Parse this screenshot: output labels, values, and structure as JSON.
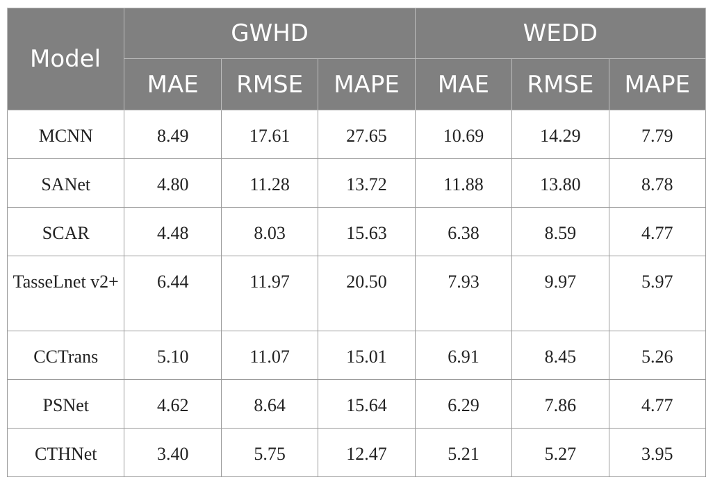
{
  "table": {
    "model_header": "Model",
    "groups": [
      "GWHD",
      "WEDD"
    ],
    "metrics": [
      "MAE",
      "RMSE",
      "MAPE",
      "MAE",
      "RMSE",
      "MAPE"
    ],
    "rows": [
      {
        "model": "MCNN",
        "values": [
          "8.49",
          "17.61",
          "27.65",
          "10.69",
          "14.29",
          "7.79"
        ]
      },
      {
        "model": "SANet",
        "values": [
          "4.80",
          "11.28",
          "13.72",
          "11.88",
          "13.80",
          "8.78"
        ]
      },
      {
        "model": "SCAR",
        "values": [
          "4.48",
          "8.03",
          "15.63",
          "6.38",
          "8.59",
          "4.77"
        ]
      },
      {
        "model": "TasseLnet v2+",
        "values": [
          "6.44",
          "11.97",
          "20.50",
          "7.93",
          "9.97",
          "5.97"
        ]
      },
      {
        "model": "CCTrans",
        "values": [
          "5.10",
          "11.07",
          "15.01",
          "6.91",
          "8.45",
          "5.26"
        ]
      },
      {
        "model": "PSNet",
        "values": [
          "4.62",
          "8.64",
          "15.64",
          "6.29",
          "7.86",
          "4.77"
        ]
      },
      {
        "model": "CTHNet",
        "values": [
          "3.40",
          "5.75",
          "12.47",
          "5.21",
          "5.27",
          "3.95"
        ]
      }
    ]
  },
  "colors": {
    "header_bg": "#808080",
    "header_text": "#ffffff",
    "grid": "#9a9a9a"
  }
}
